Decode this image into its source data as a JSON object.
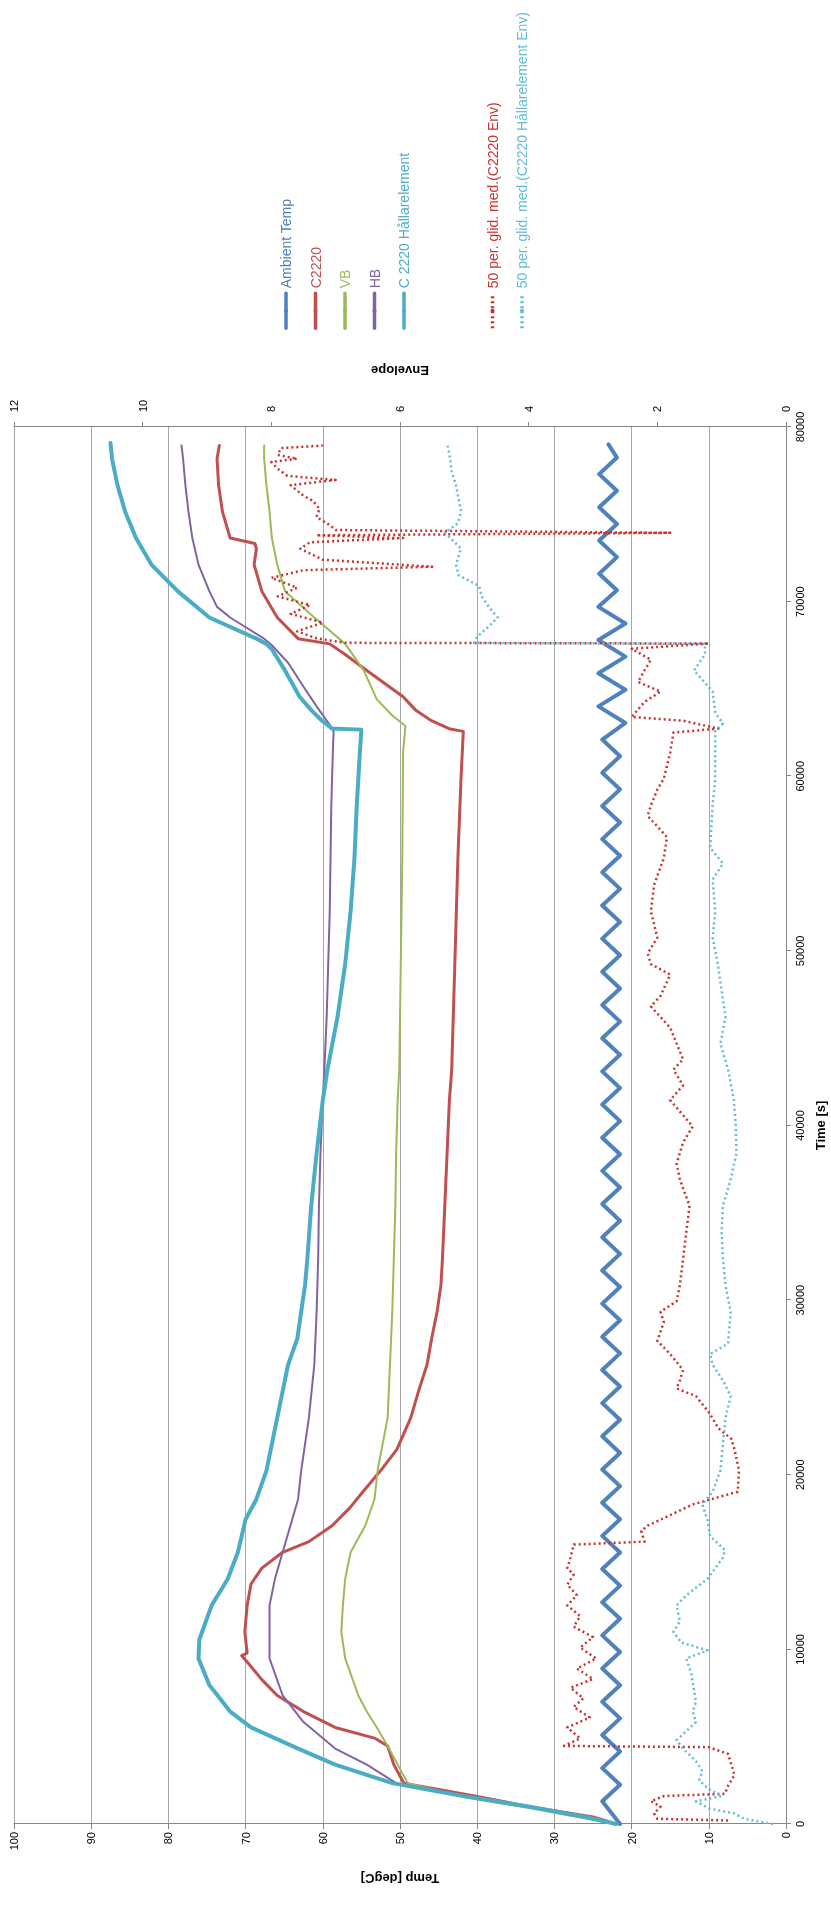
{
  "chart_data": {
    "type": "line",
    "xlabel": "Temp [degC]",
    "ylabel": "Time [s]",
    "x2label": "Envelope",
    "xlim": [
      100,
      0
    ],
    "xticks": [
      100,
      90,
      80,
      70,
      60,
      50,
      40,
      30,
      20,
      10,
      0
    ],
    "x2lim": [
      12,
      0
    ],
    "x2ticks": [
      12,
      10,
      8,
      6,
      4,
      2,
      0
    ],
    "ylim": [
      0,
      80000
    ],
    "yticks": [
      0,
      10000,
      20000,
      30000,
      40000,
      50000,
      60000,
      70000,
      80000
    ],
    "grid": "x",
    "legend": "top",
    "marker": "none",
    "line_style": "solid",
    "series": [
      {
        "name": "Ambient Temp",
        "color": "#4f81bd",
        "values": [
          0,
          1300,
          2250,
          3200,
          4150,
          5100,
          6050,
          7000,
          7950,
          8900,
          9850,
          10800,
          11750,
          12700,
          13650,
          14600,
          15550,
          16500,
          17450,
          18400,
          19350,
          20300,
          21250,
          22200,
          23150,
          24100,
          25050,
          26000,
          26950,
          27900,
          28850,
          29800,
          30750,
          31700,
          32650,
          33600,
          34550,
          35500,
          36450,
          37400,
          38350,
          39300,
          40250,
          41200,
          42150,
          43100,
          44050,
          45000,
          45950,
          46900,
          47850,
          48800,
          49750,
          50700,
          51650,
          52600,
          53550,
          54500,
          55450,
          56400,
          57350,
          58300,
          59250,
          60200,
          61150,
          62100,
          63050,
          64000,
          64950,
          65900,
          66850,
          67800,
          68750,
          69700,
          70650,
          71600,
          72550,
          73500,
          74450,
          75400,
          76350,
          77300,
          78250,
          79000
        ],
        "x": [
          21.5,
          23.8,
          21.5,
          23.8,
          21.5,
          23.8,
          21.5,
          23.8,
          21.5,
          23.8,
          21.5,
          23.8,
          21.5,
          23.8,
          21.5,
          23.8,
          21.5,
          23.8,
          21.5,
          23.8,
          21.5,
          23.8,
          21.5,
          23.8,
          21.5,
          23.8,
          21.5,
          23.8,
          21.5,
          23.8,
          21.5,
          23.8,
          21.5,
          23.8,
          21.5,
          23.8,
          21.5,
          23.8,
          21.5,
          23.8,
          21.5,
          23.8,
          21.5,
          23.8,
          21.5,
          23.8,
          21.5,
          23.8,
          21.5,
          23.8,
          21.5,
          23.8,
          21.5,
          23.8,
          21.5,
          23.8,
          21.5,
          23.8,
          21.5,
          23.8,
          21.5,
          23.8,
          21.5,
          23.8,
          21.5,
          23.8,
          20.8,
          24.3,
          20.8,
          24.3,
          20.8,
          24.3,
          20.8,
          24.3,
          21.9,
          24.2,
          21.9,
          24.2,
          21.9,
          24.2,
          21.9,
          24.2,
          21.9,
          23
        ]
      },
      {
        "name": "C2220",
        "color": "#c0504d",
        "values": [
          0,
          400,
          970,
          1580,
          2340,
          3400,
          4470,
          4920,
          5530,
          6440,
          7360,
          8270,
          9180,
          9640,
          9790,
          11000,
          12520,
          13740,
          14650,
          15560,
          16170,
          17080,
          18100,
          19030,
          20240,
          21450,
          23270,
          24790,
          26300,
          27800,
          29330,
          30850,
          32360,
          35400,
          38420,
          41450,
          43200,
          49240,
          55300,
          59850,
          62570,
          62700,
          63200,
          63800,
          64550,
          66060,
          66970,
          67580,
          67880,
          69090,
          70600,
          72120,
          73030,
          73330,
          73640,
          75150,
          76670,
          78180,
          78940
        ],
        "x": [
          22,
          25,
          33,
          40,
          49.5,
          50.8,
          51.6,
          53.3,
          58.4,
          62.5,
          65.9,
          67.9,
          69.6,
          70.5,
          69.8,
          70.1,
          69.8,
          69.3,
          67.9,
          65.2,
          61.8,
          58.8,
          56.5,
          54.8,
          52.5,
          50.4,
          48.6,
          47.6,
          46.5,
          45.9,
          45.2,
          44.7,
          44.5,
          44.2,
          43.9,
          43.6,
          43.3,
          42.9,
          42.5,
          42.1,
          41.8,
          43.5,
          46,
          48,
          49.6,
          54.3,
          57.1,
          59.1,
          63.2,
          65.9,
          67.9,
          68.9,
          68.6,
          68.8,
          72,
          73,
          73.5,
          73.7,
          73.4
        ]
      },
      {
        "name": "VB",
        "color": "#9bbb59",
        "values": [
          0,
          400,
          970,
          1580,
          2340,
          3400,
          4470,
          5530,
          6440,
          7360,
          9480,
          11000,
          12520,
          14040,
          15560,
          17080,
          18600,
          20240,
          23270,
          26300,
          29330,
          32360,
          35400,
          38420,
          41450,
          43200,
          49240,
          55300,
          61360,
          62880,
          63480,
          64400,
          66060,
          67580,
          69090,
          70600,
          72120,
          73640,
          75150,
          76670,
          78180,
          78940
        ],
        "x": [
          22,
          27,
          34,
          42,
          49,
          50.3,
          51.6,
          53,
          54.3,
          55.4,
          57.1,
          57.6,
          57.4,
          57.1,
          56.4,
          54.5,
          53.3,
          52.9,
          51.6,
          51.3,
          51,
          50.8,
          50.6,
          50.5,
          50.3,
          50.1,
          49.9,
          49.7,
          49.6,
          49.3,
          51,
          53,
          54.7,
          57.1,
          61.1,
          64.9,
          65.9,
          66.6,
          66.9,
          67.3,
          67.6,
          67.6
        ]
      },
      {
        "name": "HB",
        "color": "#8064a2",
        "values": [
          0,
          400,
          970,
          1580,
          2340,
          3400,
          4320,
          5840,
          7360,
          9480,
          12520,
          14040,
          15560,
          17080,
          18600,
          20240,
          23270,
          26300,
          29330,
          32360,
          35400,
          38420,
          41450,
          43200,
          46200,
          49240,
          52270,
          55300,
          58330,
          61360,
          62600,
          63000,
          64000,
          65000,
          66500,
          67500,
          67880,
          69090,
          69700,
          70600,
          72120,
          73640,
          75150,
          76670,
          78180,
          78940
        ],
        "x": [
          22,
          26,
          33,
          41,
          50.5,
          54.3,
          58.4,
          62.5,
          65.2,
          66.9,
          66.9,
          66.2,
          65.2,
          64.2,
          63.2,
          62.8,
          61.8,
          61.1,
          60.8,
          60.6,
          60.5,
          60.3,
          60,
          59.8,
          59.5,
          59.3,
          59.1,
          59,
          58.9,
          58.7,
          58.6,
          59.2,
          60.8,
          62.3,
          64.5,
          66.6,
          67.6,
          72,
          73.7,
          74.7,
          76.1,
          76.9,
          77.4,
          77.8,
          78.1,
          78.3
        ]
      },
      {
        "name": "C 2220 Hållarelement",
        "color": "#4bacc6",
        "values": [
          0,
          400,
          970,
          1580,
          2340,
          3400,
          4320,
          5530,
          6440,
          7960,
          9480,
          10550,
          12520,
          14040,
          15560,
          17450,
          18600,
          20240,
          23270,
          26300,
          27800,
          29330,
          30850,
          32360,
          35400,
          38420,
          41450,
          43200,
          46200,
          49240,
          52270,
          55300,
          58330,
          61360,
          62670,
          62730,
          63180,
          63790,
          64550,
          66060,
          67270,
          67580,
          67880,
          69090,
          70600,
          72120,
          73640,
          75150,
          76670,
          78180,
          79090
        ],
        "x": [
          22,
          26,
          33,
          41.5,
          51,
          58.4,
          63.2,
          69.3,
          72,
          74.7,
          76.1,
          76,
          74.4,
          72.3,
          71,
          70,
          68.6,
          67.3,
          65.9,
          64.5,
          63.3,
          62.8,
          62.3,
          62,
          61.5,
          60.8,
          60,
          59.4,
          58.1,
          57.1,
          56.4,
          55.9,
          55.6,
          55.2,
          55,
          58.8,
          60.1,
          61.5,
          63,
          64.9,
          66.6,
          67.3,
          68.6,
          74.7,
          78.8,
          82.2,
          84.2,
          85.6,
          86.6,
          87.3,
          87.5
        ]
      },
      {
        "name": "50 per. glid. med.(C2220 Env)",
        "color": "#c8322d",
        "axis": "x2",
        "line_style": "dotted",
        "values": [
          200,
          300,
          600,
          1000,
          1300,
          1600,
          1730,
          2190,
          2800,
          3400,
          4010,
          4400,
          4470,
          4900,
          5530,
          6100,
          6700,
          7200,
          7800,
          8300,
          8900,
          9480,
          10100,
          10700,
          11300,
          11900,
          12520,
          13100,
          13700,
          14300,
          14650,
          15260,
          16000,
          16170,
          16780,
          17080,
          17690,
          18300,
          19030,
          20240,
          21450,
          22060,
          22660,
          23580,
          24500,
          24940,
          25400,
          26000,
          26910,
          27670,
          28730,
          29330,
          29940,
          30850,
          32360,
          33880,
          35400,
          36910,
          37820,
          39030,
          39940,
          41450,
          42300,
          43200,
          43790,
          45600,
          46820,
          47420,
          48640,
          49240,
          49850,
          50760,
          52270,
          53790,
          55300,
          56520,
          57730,
          58330,
          59240,
          59850,
          61360,
          62500,
          62730,
          63180,
          63400,
          64250,
          64850,
          65400,
          66060,
          66670,
          67300,
          67600,
          67640,
          67900,
          68300,
          68800,
          69300,
          69800,
          70300,
          70800,
          71360,
          71800,
          72000,
          72400,
          73030,
          73400,
          73640,
          73800,
          73940,
          74100,
          74400,
          74850,
          75300,
          75760,
          76060,
          76670,
          76970,
          77200,
          77600,
          78000,
          78180,
          78400,
          78790,
          78940
        ],
        "x": [
          0.9,
          2.0,
          2.05,
          1.95,
          2.1,
          1.9,
          0.95,
          0.9,
          0.8,
          0.85,
          0.9,
          1.2,
          3.45,
          3.2,
          3.4,
          3.05,
          3.3,
          3.15,
          3.35,
          3.0,
          3.25,
          2.95,
          3.2,
          3.0,
          3.3,
          3.2,
          3.4,
          3.25,
          3.4,
          3.3,
          3.4,
          3.35,
          3.3,
          2.2,
          2.25,
          2.15,
          1.8,
          1.45,
          0.75,
          0.73,
          0.8,
          0.85,
          1.05,
          1.2,
          1.4,
          1.7,
          1.65,
          1.6,
          1.8,
          2.0,
          1.9,
          1.95,
          1.7,
          1.65,
          1.6,
          1.55,
          1.5,
          1.65,
          1.7,
          1.6,
          1.45,
          1.8,
          1.6,
          1.75,
          1.6,
          1.8,
          2.1,
          1.95,
          1.8,
          2.1,
          2.15,
          2.0,
          2.1,
          2.05,
          1.9,
          1.85,
          2.15,
          2.1,
          2.0,
          1.9,
          1.8,
          1.75,
          1.05,
          1.6,
          2.4,
          2.2,
          1.95,
          2.3,
          2.2,
          2.1,
          2.4,
          1.2,
          6.85,
          7.3,
          7.6,
          7.2,
          7.7,
          7.4,
          7.9,
          7.6,
          8.0,
          7.5,
          5.5,
          7.2,
          7.55,
          7.4,
          5.95,
          7.3,
          1.8,
          7.0,
          7.1,
          7.3,
          7.25,
          7.35,
          7.5,
          7.7,
          7.0,
          7.75,
          7.9,
          8.0,
          7.6,
          7.9,
          7.85,
          7.2
        ]
      },
      {
        "name": "50 per. glid. med.(C2220 Hållarelement Env)",
        "color": "#62bcd4",
        "axis": "x2",
        "line_style": "dotted",
        "values": [
          0,
          300,
          600,
          900,
          1300,
          1600,
          2000,
          2500,
          3000,
          3600,
          4320,
          4800,
          5840,
          6440,
          7000,
          8570,
          9480,
          9940,
          10400,
          11000,
          11600,
          12520,
          13100,
          14040,
          15260,
          15700,
          16480,
          17390,
          18300,
          19030,
          20240,
          21760,
          23270,
          24500,
          25400,
          26300,
          26910,
          27510,
          29330,
          30850,
          32360,
          33880,
          35400,
          36910,
          38420,
          39940,
          41450,
          43200,
          44700,
          46200,
          47730,
          49240,
          50760,
          52270,
          54090,
          55000,
          55910,
          58330,
          59850,
          61360,
          62570,
          63030,
          63640,
          64850,
          66060,
          66970,
          67580,
          67640,
          68000,
          68480,
          69090,
          69600,
          70300,
          70900,
          71510,
          72120,
          73030,
          73940,
          74500,
          75150,
          76670,
          77500,
          78180,
          78940
        ],
        "x": [
          0.2,
          0.65,
          0.8,
          1.2,
          1.4,
          1.0,
          1.2,
          1.35,
          1.3,
          1.4,
          1.6,
          1.7,
          1.4,
          1.45,
          1.4,
          1.47,
          1.55,
          1.22,
          1.63,
          1.75,
          1.65,
          1.7,
          1.55,
          1.22,
          0.98,
          0.95,
          1.18,
          1.22,
          1.3,
          1.14,
          1.02,
          0.98,
          0.94,
          0.86,
          0.98,
          1.14,
          1.18,
          0.9,
          0.86,
          0.94,
          0.98,
          1.0,
          0.98,
          0.86,
          0.77,
          0.78,
          0.81,
          0.9,
          1.02,
          0.94,
          1.0,
          1.06,
          1.14,
          1.1,
          1.14,
          0.98,
          1.18,
          1.14,
          1.1,
          1.1,
          1.1,
          0.98,
          1.1,
          1.14,
          1.43,
          1.26,
          1.26,
          4.85,
          4.8,
          4.65,
          4.48,
          4.6,
          4.73,
          4.77,
          5.09,
          5.13,
          5.05,
          5.3,
          5.1,
          5.05,
          5.13,
          5.2,
          5.22,
          5.26
        ]
      }
    ]
  }
}
